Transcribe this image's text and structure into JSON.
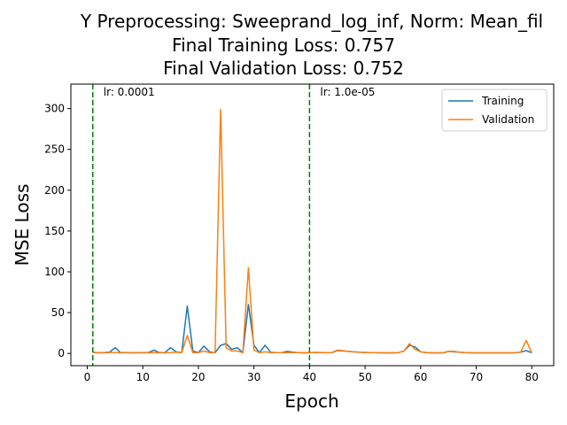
{
  "chart_data": {
    "type": "line",
    "title_lines": [
      "Y Preprocessing: Sweeprand_log_inf, Norm: Mean_fil",
      "Final Training Loss: 0.757",
      "Final Validation Loss: 0.752"
    ],
    "xlabel": "Epoch",
    "ylabel": "MSE Loss",
    "xlim": [
      -2.95,
      83.95
    ],
    "ylim": [
      -15,
      330
    ],
    "xticks": [
      0,
      10,
      20,
      30,
      40,
      50,
      60,
      70,
      80
    ],
    "yticks": [
      0,
      50,
      100,
      150,
      200,
      250,
      300
    ],
    "grid": false,
    "legend_position": "top-right",
    "colors": {
      "training": "#1f77b4",
      "validation": "#ff7f0e",
      "lr_line": "#008000"
    },
    "x": [
      1,
      2,
      3,
      4,
      5,
      6,
      7,
      8,
      9,
      10,
      11,
      12,
      13,
      14,
      15,
      16,
      17,
      18,
      19,
      20,
      21,
      22,
      23,
      24,
      25,
      26,
      27,
      28,
      29,
      30,
      31,
      32,
      33,
      34,
      35,
      36,
      37,
      38,
      39,
      40,
      41,
      42,
      43,
      44,
      45,
      46,
      47,
      48,
      49,
      50,
      51,
      52,
      53,
      54,
      55,
      56,
      57,
      58,
      59,
      60,
      61,
      62,
      63,
      64,
      65,
      66,
      67,
      68,
      69,
      70,
      71,
      72,
      73,
      74,
      75,
      76,
      77,
      78,
      79,
      80
    ],
    "series": [
      {
        "name": "Training",
        "values": [
          1.5,
          0.8,
          1,
          1.5,
          7,
          1,
          1,
          0.8,
          0.9,
          1,
          1,
          4,
          1,
          1.2,
          7,
          2,
          1,
          58,
          3,
          1,
          9,
          2,
          0.8,
          10,
          12,
          5,
          7,
          1,
          60,
          10,
          1,
          10,
          1.5,
          1,
          1,
          2.5,
          1.5,
          1,
          0.8,
          0.8,
          1.3,
          1.2,
          1,
          1,
          3.5,
          3,
          2.5,
          2,
          1.5,
          1.2,
          1,
          1,
          0.8,
          0.8,
          0.7,
          1,
          3,
          10,
          8,
          2,
          1,
          0.8,
          0.8,
          0.7,
          2.5,
          2,
          1.5,
          1,
          0.8,
          0.7,
          0.7,
          0.7,
          0.7,
          0.7,
          0.7,
          0.7,
          0.8,
          1.5,
          3.5,
          0.757
        ]
      },
      {
        "name": "Validation",
        "values": [
          1,
          0.8,
          0.8,
          1,
          1.2,
          0.8,
          0.8,
          0.8,
          0.8,
          0.8,
          0.8,
          1,
          0.8,
          0.8,
          1,
          1.5,
          1,
          22,
          1,
          1,
          3,
          1,
          1,
          299,
          7,
          3,
          3,
          1,
          105,
          4,
          1,
          2,
          1,
          1,
          1,
          1,
          1,
          1,
          1,
          1,
          1,
          1,
          1,
          1,
          4,
          3.5,
          2.5,
          2,
          1.5,
          1.2,
          1,
          1,
          0.8,
          0.8,
          0.7,
          1,
          3,
          12,
          5,
          2,
          1,
          0.8,
          0.8,
          0.7,
          2.5,
          2.5,
          1.5,
          1,
          0.8,
          0.7,
          0.7,
          0.7,
          0.7,
          0.7,
          0.7,
          0.7,
          0.8,
          1.5,
          16,
          0.752
        ]
      }
    ],
    "lr_markers": [
      {
        "epoch": 1,
        "label": "lr: 0.0001"
      },
      {
        "epoch": 40,
        "label": "lr: 1.0e-05"
      }
    ]
  }
}
